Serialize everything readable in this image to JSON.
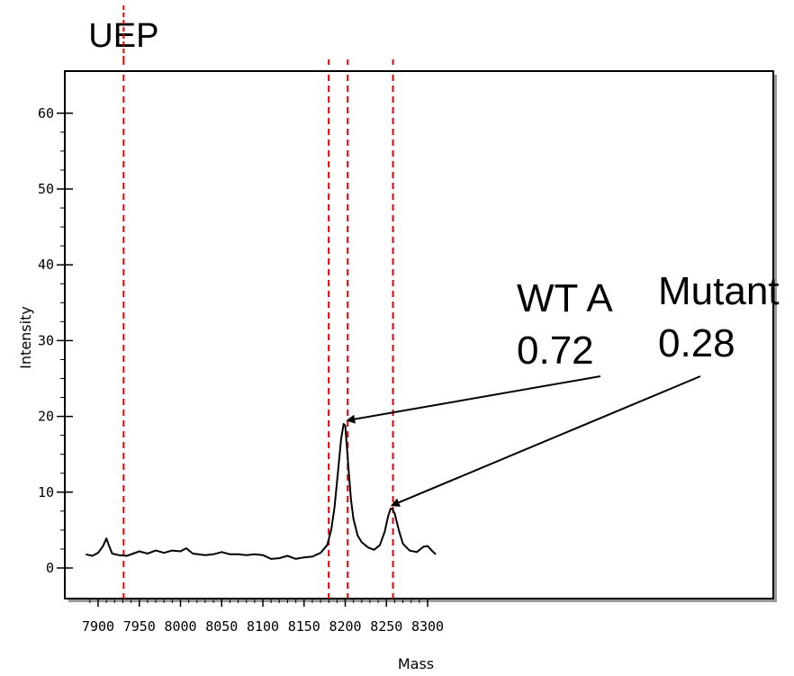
{
  "chart_data": {
    "type": "line",
    "xlabel": "Mass",
    "ylabel": "Intensity",
    "xlim": [
      7885,
      8310
    ],
    "ylim": [
      -4,
      65
    ],
    "x_ticks": [
      7900,
      7950,
      8000,
      8050,
      8100,
      8150,
      8200,
      8250,
      8300
    ],
    "y_ticks": [
      0,
      10,
      20,
      30,
      40,
      50,
      60
    ],
    "series": [
      {
        "color": "#000000",
        "x": [
          7885,
          7893,
          7900,
          7906,
          7910,
          7913,
          7917,
          7925,
          7935,
          7950,
          7960,
          7970,
          7980,
          7990,
          8000,
          8007,
          8015,
          8030,
          8040,
          8050,
          8060,
          8070,
          8080,
          8090,
          8100,
          8110,
          8120,
          8130,
          8140,
          8150,
          8160,
          8170,
          8178,
          8183,
          8187,
          8191,
          8195,
          8198,
          8200,
          8202,
          8204,
          8207,
          8210,
          8215,
          8220,
          8228,
          8235,
          8242,
          8248,
          8252,
          8255,
          8257,
          8260,
          8265,
          8270,
          8278,
          8287,
          8295,
          8300,
          8305,
          8310
        ],
        "values": [
          1.8,
          1.6,
          2.0,
          2.9,
          3.9,
          3.0,
          1.9,
          1.7,
          1.6,
          2.2,
          1.9,
          2.3,
          2.0,
          2.3,
          2.2,
          2.6,
          1.9,
          1.7,
          1.8,
          2.1,
          1.8,
          1.8,
          1.7,
          1.8,
          1.7,
          1.2,
          1.3,
          1.6,
          1.2,
          1.4,
          1.5,
          2.0,
          3.0,
          5.0,
          8.0,
          12.5,
          17.0,
          19.0,
          18.8,
          16.0,
          13.0,
          9.0,
          6.5,
          4.3,
          3.4,
          2.7,
          2.4,
          3.0,
          4.8,
          6.8,
          7.8,
          7.8,
          7.2,
          5.0,
          3.2,
          2.3,
          2.1,
          2.8,
          2.9,
          2.3,
          1.8
        ]
      }
    ],
    "markers": [
      {
        "x": 7931,
        "color": "#e00000"
      },
      {
        "x": 8180,
        "color": "#e00000"
      },
      {
        "x": 8203,
        "color": "#e00000"
      },
      {
        "x": 8258,
        "color": "#e00000"
      }
    ],
    "annotations": [
      {
        "lines": [
          "WT A",
          "0.72"
        ],
        "points_to_x": 8203,
        "points_to_y": 19
      },
      {
        "lines": [
          "Mutant",
          "0.28"
        ],
        "points_to_x": 8257,
        "points_to_y": 7.8
      }
    ],
    "uep_label": "UEP"
  }
}
